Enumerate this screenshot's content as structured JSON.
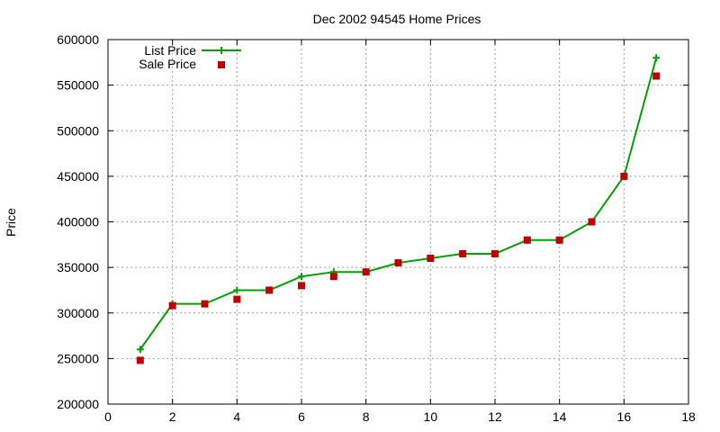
{
  "chart_data": {
    "type": "line",
    "title": "Dec 2002 94545 Home Prices",
    "xlabel": "",
    "ylabel": "Price",
    "xlim": [
      0,
      18
    ],
    "ylim": [
      200000,
      600000
    ],
    "xticks": [
      0,
      2,
      4,
      6,
      8,
      10,
      12,
      14,
      16,
      18
    ],
    "yticks": [
      200000,
      250000,
      300000,
      350000,
      400000,
      450000,
      500000,
      550000,
      600000
    ],
    "grid": true,
    "legend_position": "top-left",
    "x": [
      1,
      2,
      3,
      4,
      5,
      6,
      7,
      8,
      9,
      10,
      11,
      12,
      13,
      14,
      15,
      16,
      17
    ],
    "series": [
      {
        "name": "List Price",
        "style": "linespoints",
        "marker": "plus",
        "color": "#00a000",
        "values": [
          260000,
          310000,
          310000,
          325000,
          325000,
          340000,
          345000,
          345000,
          355000,
          360000,
          365000,
          365000,
          380000,
          380000,
          400000,
          450000,
          580000
        ]
      },
      {
        "name": "Sale Price",
        "style": "points",
        "marker": "square",
        "color": "#c00000",
        "values": [
          248000,
          308000,
          310000,
          315000,
          325000,
          330000,
          340000,
          345000,
          355000,
          360000,
          365000,
          365000,
          380000,
          380000,
          400000,
          450000,
          560000
        ]
      }
    ]
  }
}
